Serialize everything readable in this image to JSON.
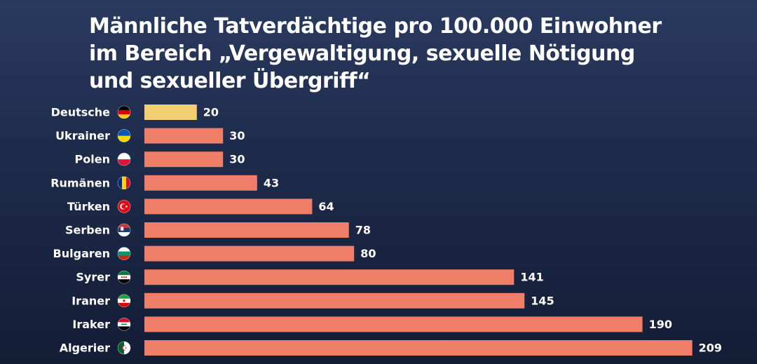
{
  "title": {
    "line1": "Männliche Tatverdächtige pro 100.000 Einwohner",
    "line2": "im Bereich „Vergewaltigung, sexuelle Nötigung",
    "line3": "und sexueller Übergriff“"
  },
  "colors": {
    "highlight_bar": "#f2cf72",
    "bar": "#ef7e68",
    "background_top": "#2a3a5f",
    "background_bottom": "#141d36"
  },
  "chart_data": {
    "type": "bar",
    "orientation": "horizontal",
    "title": "Männliche Tatverdächtige pro 100.000 Einwohner im Bereich „Vergewaltigung, sexuelle Nötigung und sexueller Übergriff“",
    "categories": [
      "Deutsche",
      "Ukrainer",
      "Polen",
      "Rumänen",
      "Türken",
      "Serben",
      "Bulgaren",
      "Syrer",
      "Iraner",
      "Iraker",
      "Algerier"
    ],
    "values": [
      20,
      30,
      30,
      43,
      64,
      78,
      80,
      141,
      145,
      190,
      209
    ],
    "flag_icons": [
      "flag-germany-icon",
      "flag-ukraine-icon",
      "flag-poland-icon",
      "flag-romania-icon",
      "flag-turkey-icon",
      "flag-serbia-icon",
      "flag-bulgaria-icon",
      "flag-syria-icon",
      "flag-iran-icon",
      "flag-iraq-icon",
      "flag-algeria-icon"
    ],
    "highlighted_category": "Deutsche",
    "xlabel": "",
    "ylabel": "",
    "grid": false,
    "legend": "none"
  }
}
